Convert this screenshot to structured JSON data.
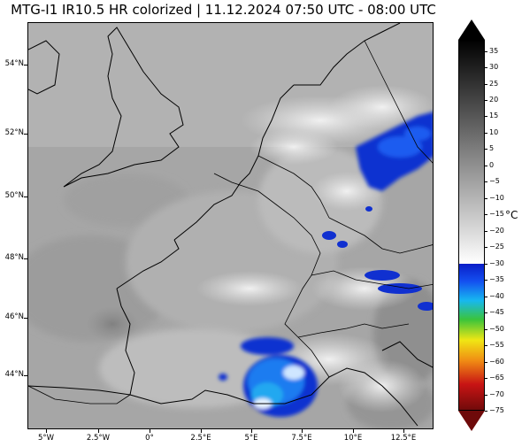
{
  "title": "MTG-I1 IR10.5 HR colorized | 11.12.2024 07:50 UTC - 08:00 UTC",
  "latitude_labels": [
    "54°N",
    "52°N",
    "50°N",
    "48°N",
    "46°N",
    "44°N"
  ],
  "longitude_labels": [
    "5°W",
    "2.5°W",
    "0°",
    "2.5°E",
    "5°E",
    "7.5°E",
    "10°E",
    "12.5°E"
  ],
  "colorbar": {
    "unit": "°C",
    "ticks": [
      "35",
      "30",
      "25",
      "20",
      "15",
      "10",
      "5",
      "0",
      "−5",
      "−10",
      "−15",
      "−20",
      "−25",
      "−30",
      "−35",
      "−40",
      "−45",
      "−50",
      "−55",
      "−60",
      "−65",
      "−70",
      "−75"
    ],
    "colors": {
      "warm_end": "#ffffff",
      "cold_gray_end": "#000000",
      "blue": "#0a1ec8",
      "cyan": "#17b8f0",
      "green": "#3bc43b",
      "yellow": "#f0e614",
      "orange": "#f08c14",
      "red": "#c81414",
      "dark_red": "#6e0a0a"
    }
  }
}
